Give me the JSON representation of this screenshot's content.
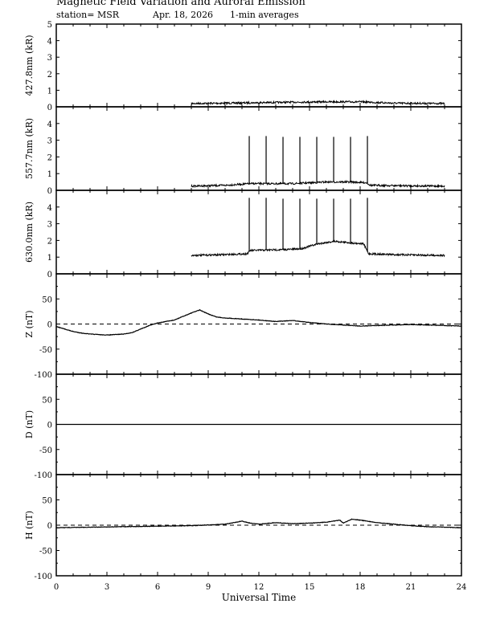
{
  "header": {
    "title": "Magnetic Field Variation and Auroral Emission",
    "station": "station= MSR",
    "date": "Apr. 18, 2026",
    "averaging": "1-min averages"
  },
  "chart_data": [
    {
      "type": "line",
      "ylabel": "427.8nm (kR)",
      "ylim": [
        0,
        5
      ],
      "yticks": [
        0,
        1,
        2,
        3,
        4,
        5
      ],
      "x_range": [
        0,
        24
      ],
      "series": [
        {
          "x": [
            8.0,
            10.0,
            12.0,
            14.0,
            16.0,
            18.0,
            20.0,
            23.0
          ],
          "y": [
            0.2,
            0.22,
            0.25,
            0.28,
            0.3,
            0.3,
            0.22,
            0.2
          ]
        }
      ],
      "spikes": []
    },
    {
      "type": "line",
      "ylabel": "557.7nm (kR)",
      "ylim": [
        0,
        5
      ],
      "yticks": [
        0,
        1,
        2,
        3,
        4
      ],
      "x_range": [
        0,
        24
      ],
      "series": [
        {
          "x": [
            8.0,
            10.0,
            11.5,
            14.0,
            16.0,
            17.5,
            18.4,
            18.6,
            20.0,
            23.0
          ],
          "y": [
            0.25,
            0.3,
            0.4,
            0.4,
            0.5,
            0.5,
            0.45,
            0.3,
            0.28,
            0.25
          ]
        }
      ],
      "spikes": [
        {
          "x": 11.43,
          "y": 3.25
        },
        {
          "x": 12.43,
          "y": 3.25
        },
        {
          "x": 13.43,
          "y": 3.2
        },
        {
          "x": 14.43,
          "y": 3.2
        },
        {
          "x": 15.43,
          "y": 3.2
        },
        {
          "x": 16.43,
          "y": 3.2
        },
        {
          "x": 17.43,
          "y": 3.2
        },
        {
          "x": 18.43,
          "y": 3.25
        }
      ]
    },
    {
      "type": "line",
      "ylabel": "630.0nm (kR)",
      "ylim": [
        0,
        5
      ],
      "yticks": [
        0,
        1,
        2,
        3,
        4
      ],
      "x_range": [
        0,
        24
      ],
      "series": [
        {
          "x": [
            8.0,
            10.0,
            11.3,
            11.5,
            13.5,
            14.5,
            15.5,
            16.5,
            17.5,
            18.2,
            18.5,
            20.0,
            23.0
          ],
          "y": [
            1.1,
            1.15,
            1.2,
            1.4,
            1.45,
            1.5,
            1.8,
            1.95,
            1.85,
            1.8,
            1.2,
            1.15,
            1.1
          ]
        }
      ],
      "spikes": [
        {
          "x": 11.43,
          "y": 4.55
        },
        {
          "x": 12.43,
          "y": 4.55
        },
        {
          "x": 13.43,
          "y": 4.5
        },
        {
          "x": 14.43,
          "y": 4.5
        },
        {
          "x": 15.43,
          "y": 4.5
        },
        {
          "x": 16.43,
          "y": 4.5
        },
        {
          "x": 17.43,
          "y": 4.5
        },
        {
          "x": 18.43,
          "y": 4.55
        }
      ]
    },
    {
      "type": "line",
      "ylabel": "Z (nT)",
      "ylim": [
        -100,
        100
      ],
      "yticks": [
        -100,
        -50,
        0,
        50
      ],
      "x_range": [
        0,
        24
      ],
      "baseline": 0,
      "series": [
        {
          "x": [
            0,
            0.5,
            1.0,
            1.5,
            2.0,
            3.0,
            4.0,
            4.5,
            5.0,
            5.5,
            6.0,
            7.0,
            7.5,
            8.0,
            8.5,
            9.0,
            9.5,
            10.0,
            11.0,
            12.0,
            13.0,
            14.0,
            15.0,
            16.0,
            17.0,
            18.0,
            19.0,
            20.0,
            21.0,
            22.0,
            23.0,
            24.0
          ],
          "y": [
            -5,
            -10,
            -15,
            -18,
            -20,
            -22,
            -20,
            -17,
            -10,
            -3,
            2,
            8,
            15,
            22,
            28,
            20,
            14,
            12,
            10,
            8,
            5,
            7,
            3,
            0,
            -2,
            -4,
            -3,
            -2,
            -1,
            -2,
            -3,
            -4
          ]
        }
      ],
      "spikes": []
    },
    {
      "type": "line",
      "ylabel": "D (nT)",
      "ylim": [
        -100,
        100
      ],
      "yticks": [
        -100,
        -50,
        0,
        50
      ],
      "x_range": [
        0,
        24
      ],
      "baseline": 0,
      "series": [
        {
          "x": [
            0,
            24
          ],
          "y": [
            0,
            0
          ]
        }
      ],
      "spikes": []
    },
    {
      "type": "line",
      "ylabel": "H (nT)",
      "ylim": [
        -100,
        100
      ],
      "yticks": [
        -100,
        -50,
        0,
        50
      ],
      "x_range": [
        0,
        24
      ],
      "baseline": 0,
      "series": [
        {
          "x": [
            0,
            2.0,
            4.0,
            6.0,
            8.0,
            10.0,
            11.0,
            11.5,
            12.0,
            13.0,
            14.0,
            15.0,
            16.0,
            16.8,
            17.0,
            17.5,
            18.0,
            19.0,
            20.0,
            21.0,
            22.0,
            23.0,
            24.0
          ],
          "y": [
            -5,
            -4,
            -3,
            -2,
            -1,
            2,
            8,
            4,
            2,
            5,
            3,
            4,
            6,
            10,
            4,
            12,
            10,
            5,
            2,
            -1,
            -3,
            -4,
            -5
          ]
        }
      ],
      "spikes": []
    }
  ],
  "x_axis": {
    "label": "Universal Time",
    "ticks": [
      "0",
      "3",
      "6",
      "9",
      "12",
      "15",
      "18",
      "21",
      "24"
    ]
  },
  "colors": {
    "line": "#000000",
    "background": "#ffffff"
  }
}
